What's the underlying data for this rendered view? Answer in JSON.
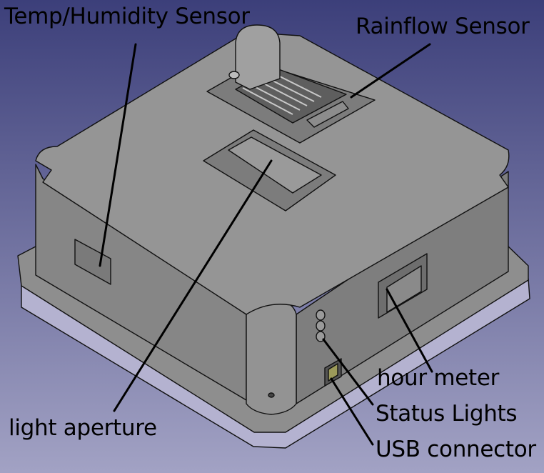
{
  "colors": {
    "background_top": "#3c3f7a",
    "background_bottom": "#a2a2c4",
    "body_face": "#8a8a8a",
    "body_top": "#909090",
    "base_plate": "#b4b2d0",
    "edge": "#111111",
    "leader": "#000000"
  },
  "labels": {
    "temp_humidity": "Temp/Humidity Sensor",
    "rainflow": "Rainflow Sensor",
    "hour_meter": "hour meter",
    "status_lights": "Status Lights",
    "light_aperture": "light aperture",
    "usb_connector": "USB connector"
  },
  "icons": [
    "status-light-icon",
    "usb-port-icon"
  ]
}
